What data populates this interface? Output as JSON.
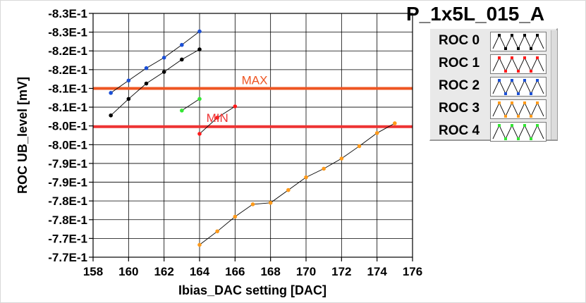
{
  "chart_data": {
    "type": "line",
    "title": "P_1x5L_015_A",
    "xlabel": "Ibias_DAC setting [DAC]",
    "ylabel": "ROC UB_level [mV]",
    "xlim": [
      158,
      176
    ],
    "ylim": [
      -0.83,
      -0.765
    ],
    "x_ticks": [
      158,
      160,
      162,
      164,
      166,
      168,
      170,
      172,
      174,
      176
    ],
    "x_tick_labels": [
      "158",
      "160",
      "162",
      "164",
      "166",
      "168",
      "170",
      "172",
      "174",
      "176"
    ],
    "y_ticks": [
      -0.765,
      -0.77,
      -0.775,
      -0.78,
      -0.785,
      -0.79,
      -0.795,
      -0.8,
      -0.805,
      -0.81,
      -0.815,
      -0.82,
      -0.825,
      -0.83
    ],
    "y_tick_labels": [
      "-7.7E-1",
      "-7.7E-1",
      "-7.8E-1",
      "-7.8E-1",
      "-7.9E-1",
      "-7.9E-1",
      "-8.0E-1",
      "-8.0E-1",
      "-8.1E-1",
      "-8.1E-1",
      "-8.2E-1",
      "-8.2E-1",
      "-8.3E-1",
      "-8.3E-1"
    ],
    "grid": true,
    "legend_position": "right",
    "series": [
      {
        "name": "ROC 0",
        "color": "#000000",
        "x": [
          159,
          160,
          161,
          162,
          163,
          164
        ],
        "y": [
          -0.8028,
          -0.8072,
          -0.8113,
          -0.8144,
          -0.8177,
          -0.8204
        ]
      },
      {
        "name": "ROC 1",
        "color": "#ff1a1a",
        "x": [
          164,
          165,
          166
        ],
        "y": [
          -0.7979,
          -0.8022,
          -0.8052
        ]
      },
      {
        "name": "ROC 2",
        "color": "#1a4fd6",
        "x": [
          159,
          160,
          161,
          162,
          163,
          164
        ],
        "y": [
          -0.8088,
          -0.8121,
          -0.8154,
          -0.8182,
          -0.8216,
          -0.8252
        ]
      },
      {
        "name": "ROC 3",
        "color": "#ff9a1a",
        "x": [
          164,
          165,
          166,
          167,
          168,
          169,
          170,
          171,
          172,
          173,
          174,
          175
        ],
        "y": [
          -0.7683,
          -0.7719,
          -0.7758,
          -0.7791,
          -0.7795,
          -0.7829,
          -0.7863,
          -0.7886,
          -0.7913,
          -0.7946,
          -0.7981,
          -0.8007
        ]
      },
      {
        "name": "ROC 4",
        "color": "#33e633",
        "x": [
          163,
          164
        ],
        "y": [
          -0.8041,
          -0.8072
        ]
      }
    ],
    "thresholds": [
      {
        "label": "MIN",
        "y": -0.7998,
        "color": "#ee3333"
      },
      {
        "label": "MAX",
        "y": -0.81,
        "color": "#ee5522"
      }
    ]
  }
}
